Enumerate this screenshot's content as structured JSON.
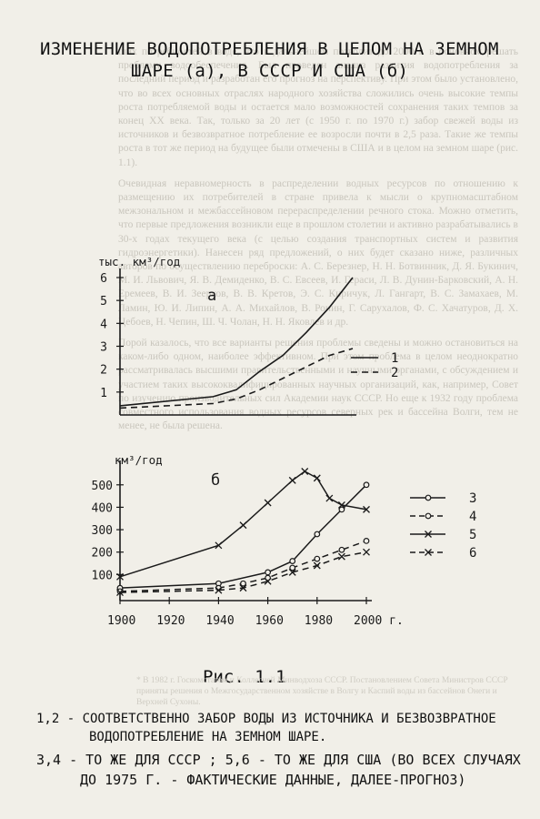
{
  "title": {
    "line1": "ИЗМЕНЕНИЕ ВОДОПОТРЕБЛЕНИЯ В ЦЕЛОМ НА ЗЕМНОМ",
    "line2": "ШАРЕ (а), В СССР И США (б)"
  },
  "figure_label": "Рис. 1.1",
  "caption": {
    "line1": "1,2 - СООТВЕТСТВЕННО ЗАБОР ВОДЫ ИЗ ИСТОЧНИКА И БЕЗВОЗВРАТНОЕ",
    "line2": "ВОДОПОТРЕБЛЕНИЕ НА ЗЕМНОМ ШАРЕ.",
    "line3": "3,4 - ТО ЖЕ ДЛЯ СССР ; 5,6 - ТО ЖЕ ДЛЯ США (ВО ВСЕХ СЛУЧАЯХ",
    "line4": "ДО 1975 Г. - ФАКТИЧЕСКИЕ ДАННЫЕ, ДАЛЕЕ-ПРОГНОЗ)"
  },
  "chart_data": [
    {
      "type": "line",
      "panel_label": "а",
      "ylabel": "тыс. км³/год",
      "x": [
        1900,
        1940,
        1950,
        1960,
        1970,
        1980,
        1990,
        2000
      ],
      "yticks": [
        1,
        2,
        3,
        4,
        5,
        6
      ],
      "ylim": [
        0,
        6
      ],
      "xlim": [
        1900,
        2000
      ],
      "series": [
        {
          "name": "1",
          "style": "solid",
          "values": [
            0.4,
            0.8,
            1.1,
            1.9,
            2.6,
            3.6,
            4.7,
            6.0
          ]
        },
        {
          "name": "2",
          "style": "dashed",
          "values": [
            0.3,
            0.5,
            0.7,
            1.1,
            1.6,
            2.1,
            2.6,
            2.9
          ]
        }
      ],
      "legend": "right"
    },
    {
      "type": "line",
      "panel_label": "б",
      "ylabel": "км³/год",
      "x": [
        1900,
        1910,
        1920,
        1930,
        1940,
        1950,
        1960,
        1970,
        1975,
        1980,
        1985,
        1990,
        2000
      ],
      "xticks": [
        1900,
        1920,
        1940,
        1960,
        1980,
        2000
      ],
      "xtick_labels": [
        "1900",
        "1920",
        "1940",
        "1960",
        "1980",
        "2000 г."
      ],
      "yticks": [
        100,
        200,
        300,
        400,
        500
      ],
      "ylim": [
        0,
        560
      ],
      "xlim": [
        1900,
        2000
      ],
      "series": [
        {
          "name": "3",
          "style": "solid-circle",
          "x": [
            1900,
            1940,
            1960,
            1970,
            1980,
            1990,
            2000
          ],
          "values": [
            40,
            60,
            110,
            160,
            280,
            390,
            500
          ]
        },
        {
          "name": "4",
          "style": "dashed-circle",
          "x": [
            1900,
            1940,
            1950,
            1960,
            1970,
            1980,
            1990,
            2000
          ],
          "values": [
            25,
            40,
            60,
            85,
            130,
            170,
            210,
            250
          ]
        },
        {
          "name": "5",
          "style": "solid-x",
          "x": [
            1900,
            1940,
            1950,
            1960,
            1970,
            1975,
            1980,
            1985,
            1990,
            2000
          ],
          "values": [
            90,
            230,
            320,
            420,
            520,
            560,
            530,
            440,
            410,
            390
          ]
        },
        {
          "name": "6",
          "style": "dashed-x",
          "x": [
            1900,
            1940,
            1950,
            1960,
            1970,
            1980,
            1990,
            2000
          ],
          "values": [
            20,
            30,
            40,
            70,
            110,
            140,
            180,
            200
          ]
        }
      ],
      "legend": "right"
    }
  ]
}
